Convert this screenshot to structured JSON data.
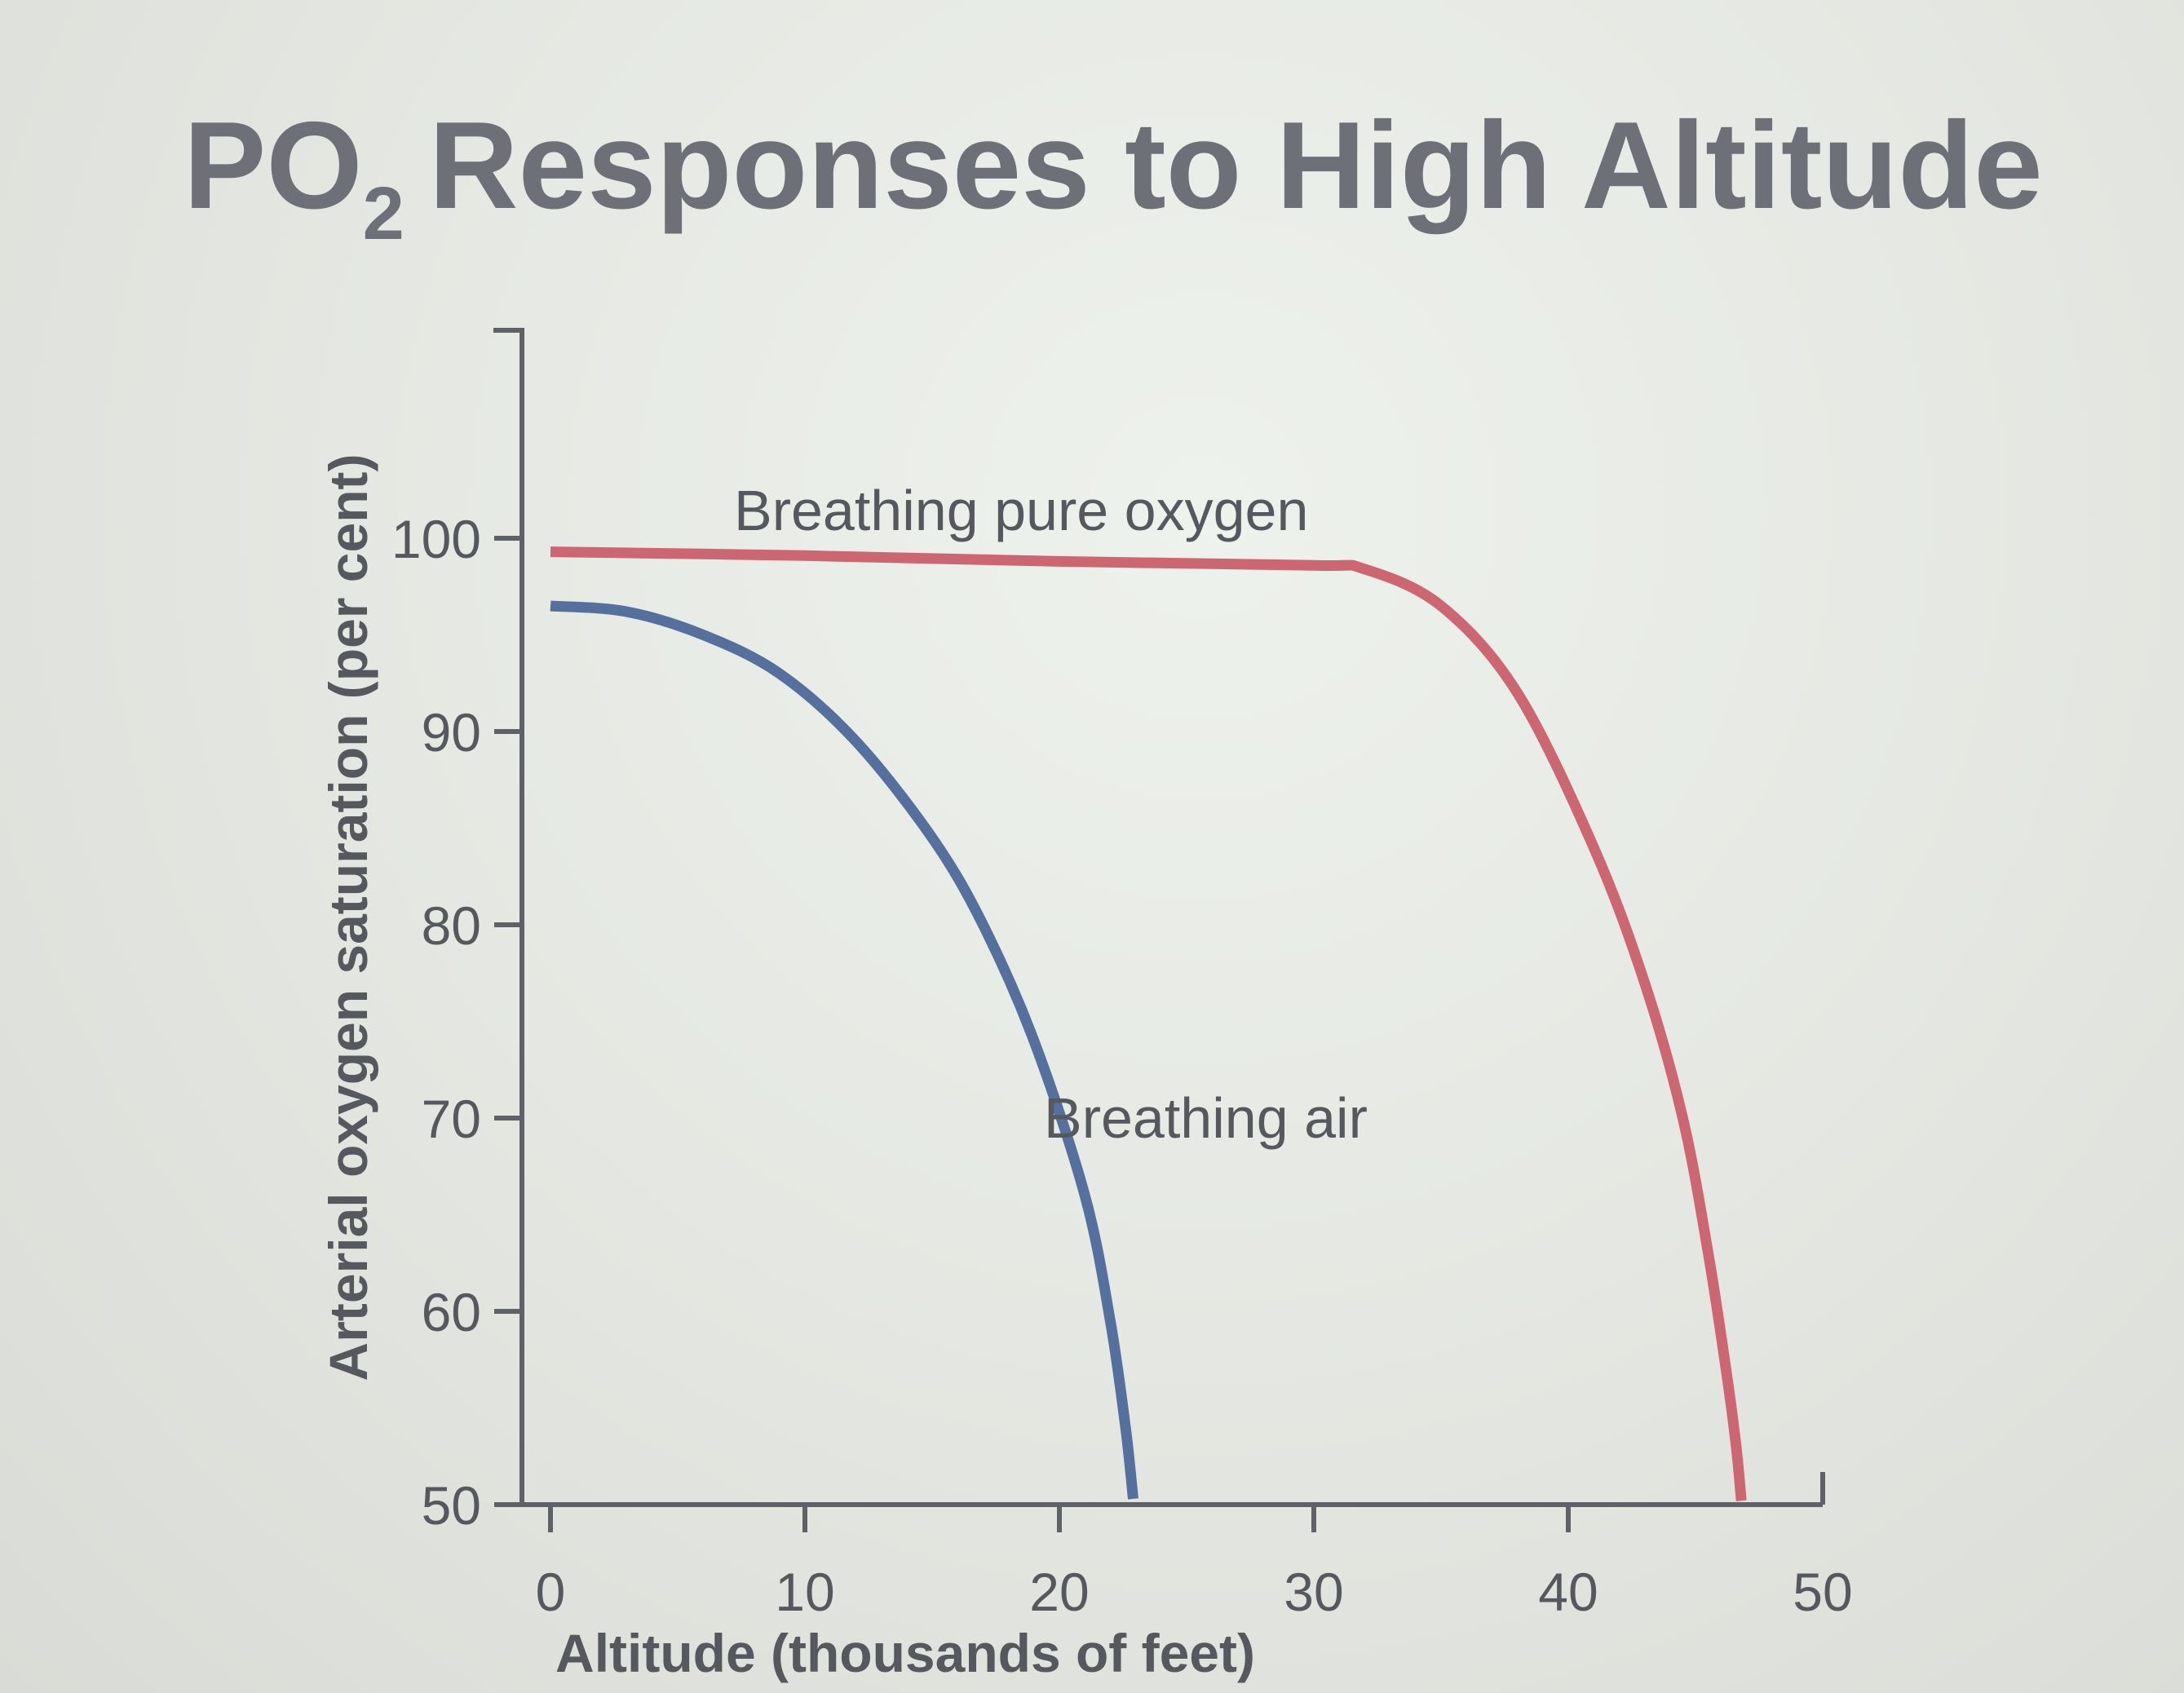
{
  "chart_data": {
    "type": "line",
    "title_main": "PO",
    "title_sub": "2",
    "title_rest": "Responses to High Altitude",
    "xlabel": "Altitude (thousands of feet)",
    "ylabel": "Arterial oxygen saturation (per cent)",
    "xlim": [
      0,
      50
    ],
    "ylim": [
      50,
      100
    ],
    "x_ticks": [
      0,
      10,
      20,
      30,
      40,
      50
    ],
    "y_ticks": [
      50,
      60,
      70,
      80,
      90,
      100
    ],
    "grid": false,
    "series": [
      {
        "name": "Breathing pure oxygen",
        "color": "#cc6670",
        "points": [
          [
            0,
            99.3
          ],
          [
            10,
            99.1
          ],
          [
            20,
            98.8
          ],
          [
            30,
            98.6
          ],
          [
            32,
            98.4
          ],
          [
            35,
            96.5
          ],
          [
            38,
            92
          ],
          [
            41,
            84
          ],
          [
            43,
            77
          ],
          [
            44.5,
            70
          ],
          [
            45.5,
            63
          ],
          [
            46.2,
            57
          ],
          [
            46.6,
            53
          ],
          [
            46.8,
            50.2
          ]
        ]
      },
      {
        "name": "Breathing air",
        "color": "#55709d",
        "points": [
          [
            0,
            96.5
          ],
          [
            3,
            96.2
          ],
          [
            6,
            95
          ],
          [
            9,
            93
          ],
          [
            12,
            89.5
          ],
          [
            15,
            84.5
          ],
          [
            17,
            80
          ],
          [
            19,
            74
          ],
          [
            21,
            66
          ],
          [
            22,
            59.5
          ],
          [
            22.6,
            54
          ],
          [
            22.9,
            50.3
          ]
        ]
      }
    ]
  }
}
